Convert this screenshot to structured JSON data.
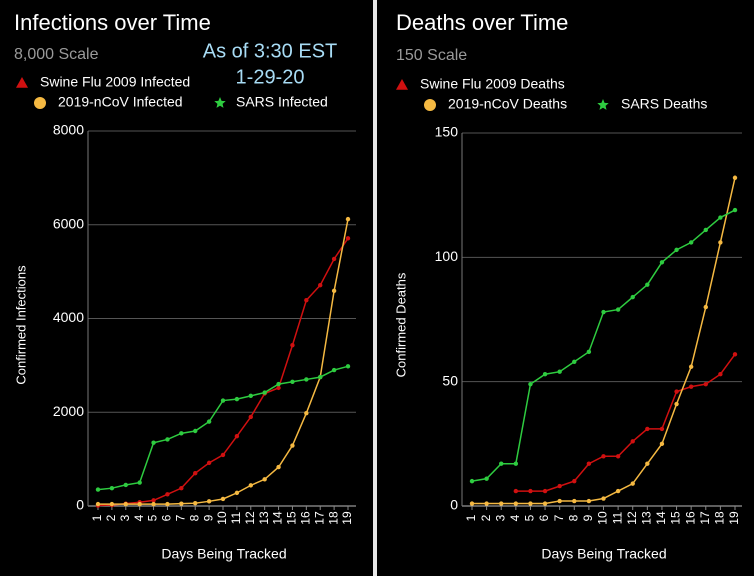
{
  "chart_data": [
    {
      "type": "line",
      "title": "Infections over Time",
      "subtitle": "8,000 Scale",
      "annotations": [
        "As of 3:30 EST",
        "1-29-20"
      ],
      "x_label": "Days Being Tracked",
      "y_label": "Confirmed Infections",
      "categories": [
        "1",
        "2",
        "3",
        "4",
        "5",
        "6",
        "7",
        "8",
        "9",
        "10",
        "11",
        "12",
        "13",
        "14",
        "15",
        "16",
        "17",
        "18",
        "19"
      ],
      "series": [
        {
          "name": "Swine Flu 2009 Infected",
          "color": "#d01010",
          "marker": "triangle",
          "values": [
            10,
            20,
            50,
            80,
            120,
            250,
            380,
            700,
            920,
            1090,
            1490,
            1900,
            2400,
            2520,
            3430,
            4390,
            4710,
            5270,
            5710
          ]
        },
        {
          "name": "2019-nCoV Infected",
          "color": "#f5b942",
          "marker": "circle",
          "values": [
            40,
            40,
            40,
            40,
            40,
            40,
            50,
            60,
            100,
            150,
            280,
            440,
            570,
            830,
            1290,
            1980,
            2750,
            4590,
            6120
          ]
        },
        {
          "name": "SARS Infected",
          "color": "#2ecc40",
          "marker": "star",
          "values": [
            350,
            380,
            450,
            500,
            1350,
            1420,
            1550,
            1600,
            1800,
            2250,
            2280,
            2350,
            2420,
            2600,
            2650,
            2700,
            2750,
            2900,
            2980
          ]
        }
      ],
      "ylim": [
        0,
        8000
      ],
      "yticks": [
        0,
        2000,
        4000,
        6000,
        8000
      ],
      "grid": true
    },
    {
      "type": "line",
      "title": "Deaths over Time",
      "subtitle": "150 Scale",
      "x_label": "Days Being Tracked",
      "y_label": "Confirmed  Deaths",
      "categories": [
        "1",
        "2",
        "3",
        "4",
        "5",
        "6",
        "7",
        "8",
        "9",
        "10",
        "11",
        "12",
        "13",
        "14",
        "15",
        "16",
        "17",
        "18",
        "19"
      ],
      "series": [
        {
          "name": "Swine Flu 2009 Deaths",
          "color": "#d01010",
          "marker": "triangle",
          "values": [
            null,
            null,
            null,
            6,
            6,
            6,
            8,
            10,
            17,
            20,
            20,
            26,
            31,
            31,
            46,
            48,
            49,
            53,
            61
          ]
        },
        {
          "name": "2019-nCoV Deaths",
          "color": "#f5b942",
          "marker": "circle",
          "values": [
            1,
            1,
            1,
            1,
            1,
            1,
            2,
            2,
            2,
            3,
            6,
            9,
            17,
            25,
            41,
            56,
            80,
            106,
            132
          ]
        },
        {
          "name": "SARS Deaths",
          "color": "#2ecc40",
          "marker": "star",
          "values": [
            10,
            11,
            17,
            17,
            49,
            53,
            54,
            58,
            62,
            78,
            79,
            84,
            89,
            98,
            103,
            106,
            111,
            116,
            119
          ]
        }
      ],
      "ylim": [
        0,
        150
      ],
      "yticks": [
        0,
        50,
        100,
        150
      ],
      "grid": true
    }
  ]
}
